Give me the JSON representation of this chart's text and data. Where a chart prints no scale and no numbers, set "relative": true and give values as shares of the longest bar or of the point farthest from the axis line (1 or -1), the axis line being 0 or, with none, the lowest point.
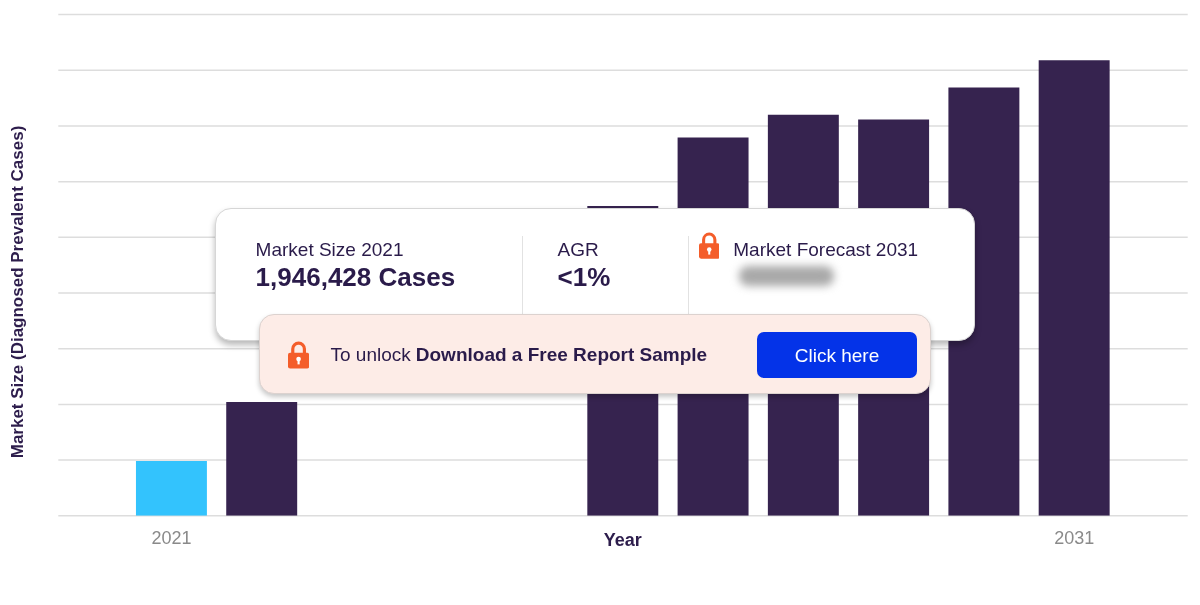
{
  "chart_data": {
    "type": "bar",
    "xlabel": "Year",
    "ylabel": "Market Size (Diagnosed Prevalent Cases)",
    "categories": [
      "2021",
      null,
      null,
      null,
      null,
      null,
      null,
      null,
      null,
      null,
      "2031"
    ],
    "values": [
      0.12,
      0.25,
      null,
      null,
      null,
      0.68,
      0.83,
      0.88,
      0.87,
      0.94,
      1
    ],
    "colors": [
      "#33c3fd",
      "#36234f",
      "#36234f",
      "#36234f",
      "#36234f",
      "#36234f",
      "#36234f",
      "#36234f",
      "#36234f",
      "#36234f",
      "#36234f"
    ],
    "relative": true,
    "grid": "y",
    "annotations": [
      "Market Size 2021",
      "1,946,428 Cases",
      "AGR",
      "<1%",
      "Market Forecast 2031",
      "To unlock",
      "Download a Free Report Sample",
      "Click here"
    ]
  }
}
